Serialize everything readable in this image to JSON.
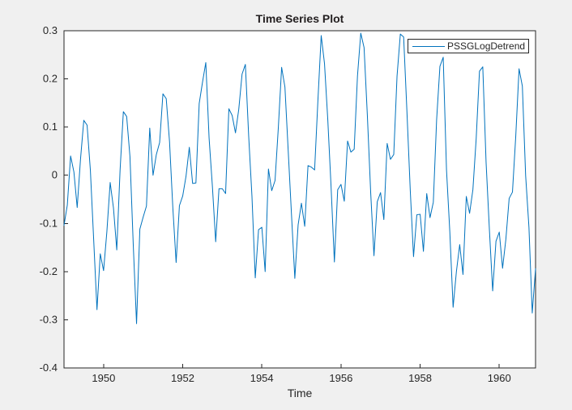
{
  "figure": {
    "background_color": "#f0f0f0",
    "plot_background_color": "#ffffff",
    "axis_color": "#262626",
    "accent_color": "#0072BD"
  },
  "chart_data": {
    "type": "line",
    "title": "Time Series Plot",
    "xlabel": "Time",
    "ylabel": "",
    "grid": false,
    "legend": {
      "position": "northeast",
      "entries": [
        "PSSGLogDetrend"
      ]
    },
    "xlim": [
      1949,
      1960.9167
    ],
    "ylim": [
      -0.4,
      0.3
    ],
    "xticks": {
      "values": [
        1950,
        1952,
        1954,
        1956,
        1958,
        1960
      ],
      "labels": [
        "1950",
        "1952",
        "1954",
        "1956",
        "1958",
        "1960"
      ]
    },
    "yticks": {
      "values": [
        -0.4,
        -0.3,
        -0.2,
        -0.1,
        0,
        0.1,
        0.2,
        0.3
      ],
      "labels": [
        "-0.4",
        "-0.3",
        "-0.2",
        "-0.1",
        "0",
        "0.1",
        "0.2",
        "0.3"
      ]
    },
    "series": [
      {
        "name": "PSSGLogDetrend",
        "color": "#0072BD",
        "start_x": 1949,
        "points_per_unit": 12,
        "values": [
          -0.104,
          -0.062,
          0.04,
          0.007,
          -0.067,
          0.033,
          0.114,
          0.104,
          0.01,
          -0.134,
          -0.279,
          -0.163,
          -0.198,
          -0.117,
          -0.015,
          -0.068,
          -0.155,
          0.01,
          0.132,
          0.122,
          0.039,
          -0.144,
          -0.308,
          -0.112,
          -0.087,
          -0.064,
          0.098,
          0.0,
          0.043,
          0.068,
          0.169,
          0.159,
          0.07,
          -0.067,
          -0.181,
          -0.063,
          -0.043,
          -0.002,
          0.058,
          -0.017,
          -0.016,
          0.149,
          0.193,
          0.234,
          0.077,
          -0.023,
          -0.138,
          -0.028,
          -0.028,
          -0.038,
          0.138,
          0.124,
          0.088,
          0.137,
          0.21,
          0.23,
          0.082,
          -0.044,
          -0.213,
          -0.113,
          -0.108,
          -0.2,
          0.013,
          -0.032,
          -0.011,
          0.099,
          0.224,
          0.183,
          0.05,
          -0.083,
          -0.214,
          -0.103,
          -0.058,
          -0.106,
          0.02,
          0.017,
          0.011,
          0.155,
          0.29,
          0.232,
          0.115,
          -0.025,
          -0.18,
          -0.03,
          -0.019,
          -0.054,
          0.071,
          0.048,
          0.054,
          0.206,
          0.295,
          0.265,
          0.124,
          -0.035,
          -0.167,
          -0.055,
          -0.036,
          -0.092,
          0.066,
          0.033,
          0.043,
          0.206,
          0.293,
          0.287,
          0.132,
          -0.03,
          -0.169,
          -0.082,
          -0.081,
          -0.158,
          -0.038,
          -0.088,
          -0.056,
          0.115,
          0.226,
          0.245,
          0.011,
          -0.117,
          -0.274,
          -0.2,
          -0.144,
          -0.206,
          -0.044,
          -0.079,
          -0.03,
          0.076,
          0.216,
          0.225,
          0.027,
          -0.112,
          -0.24,
          -0.137,
          -0.118,
          -0.193,
          -0.133,
          -0.048,
          -0.035,
          0.081,
          0.221,
          0.185,
          -0.001,
          -0.108,
          -0.286,
          -0.194
        ]
      }
    ]
  }
}
